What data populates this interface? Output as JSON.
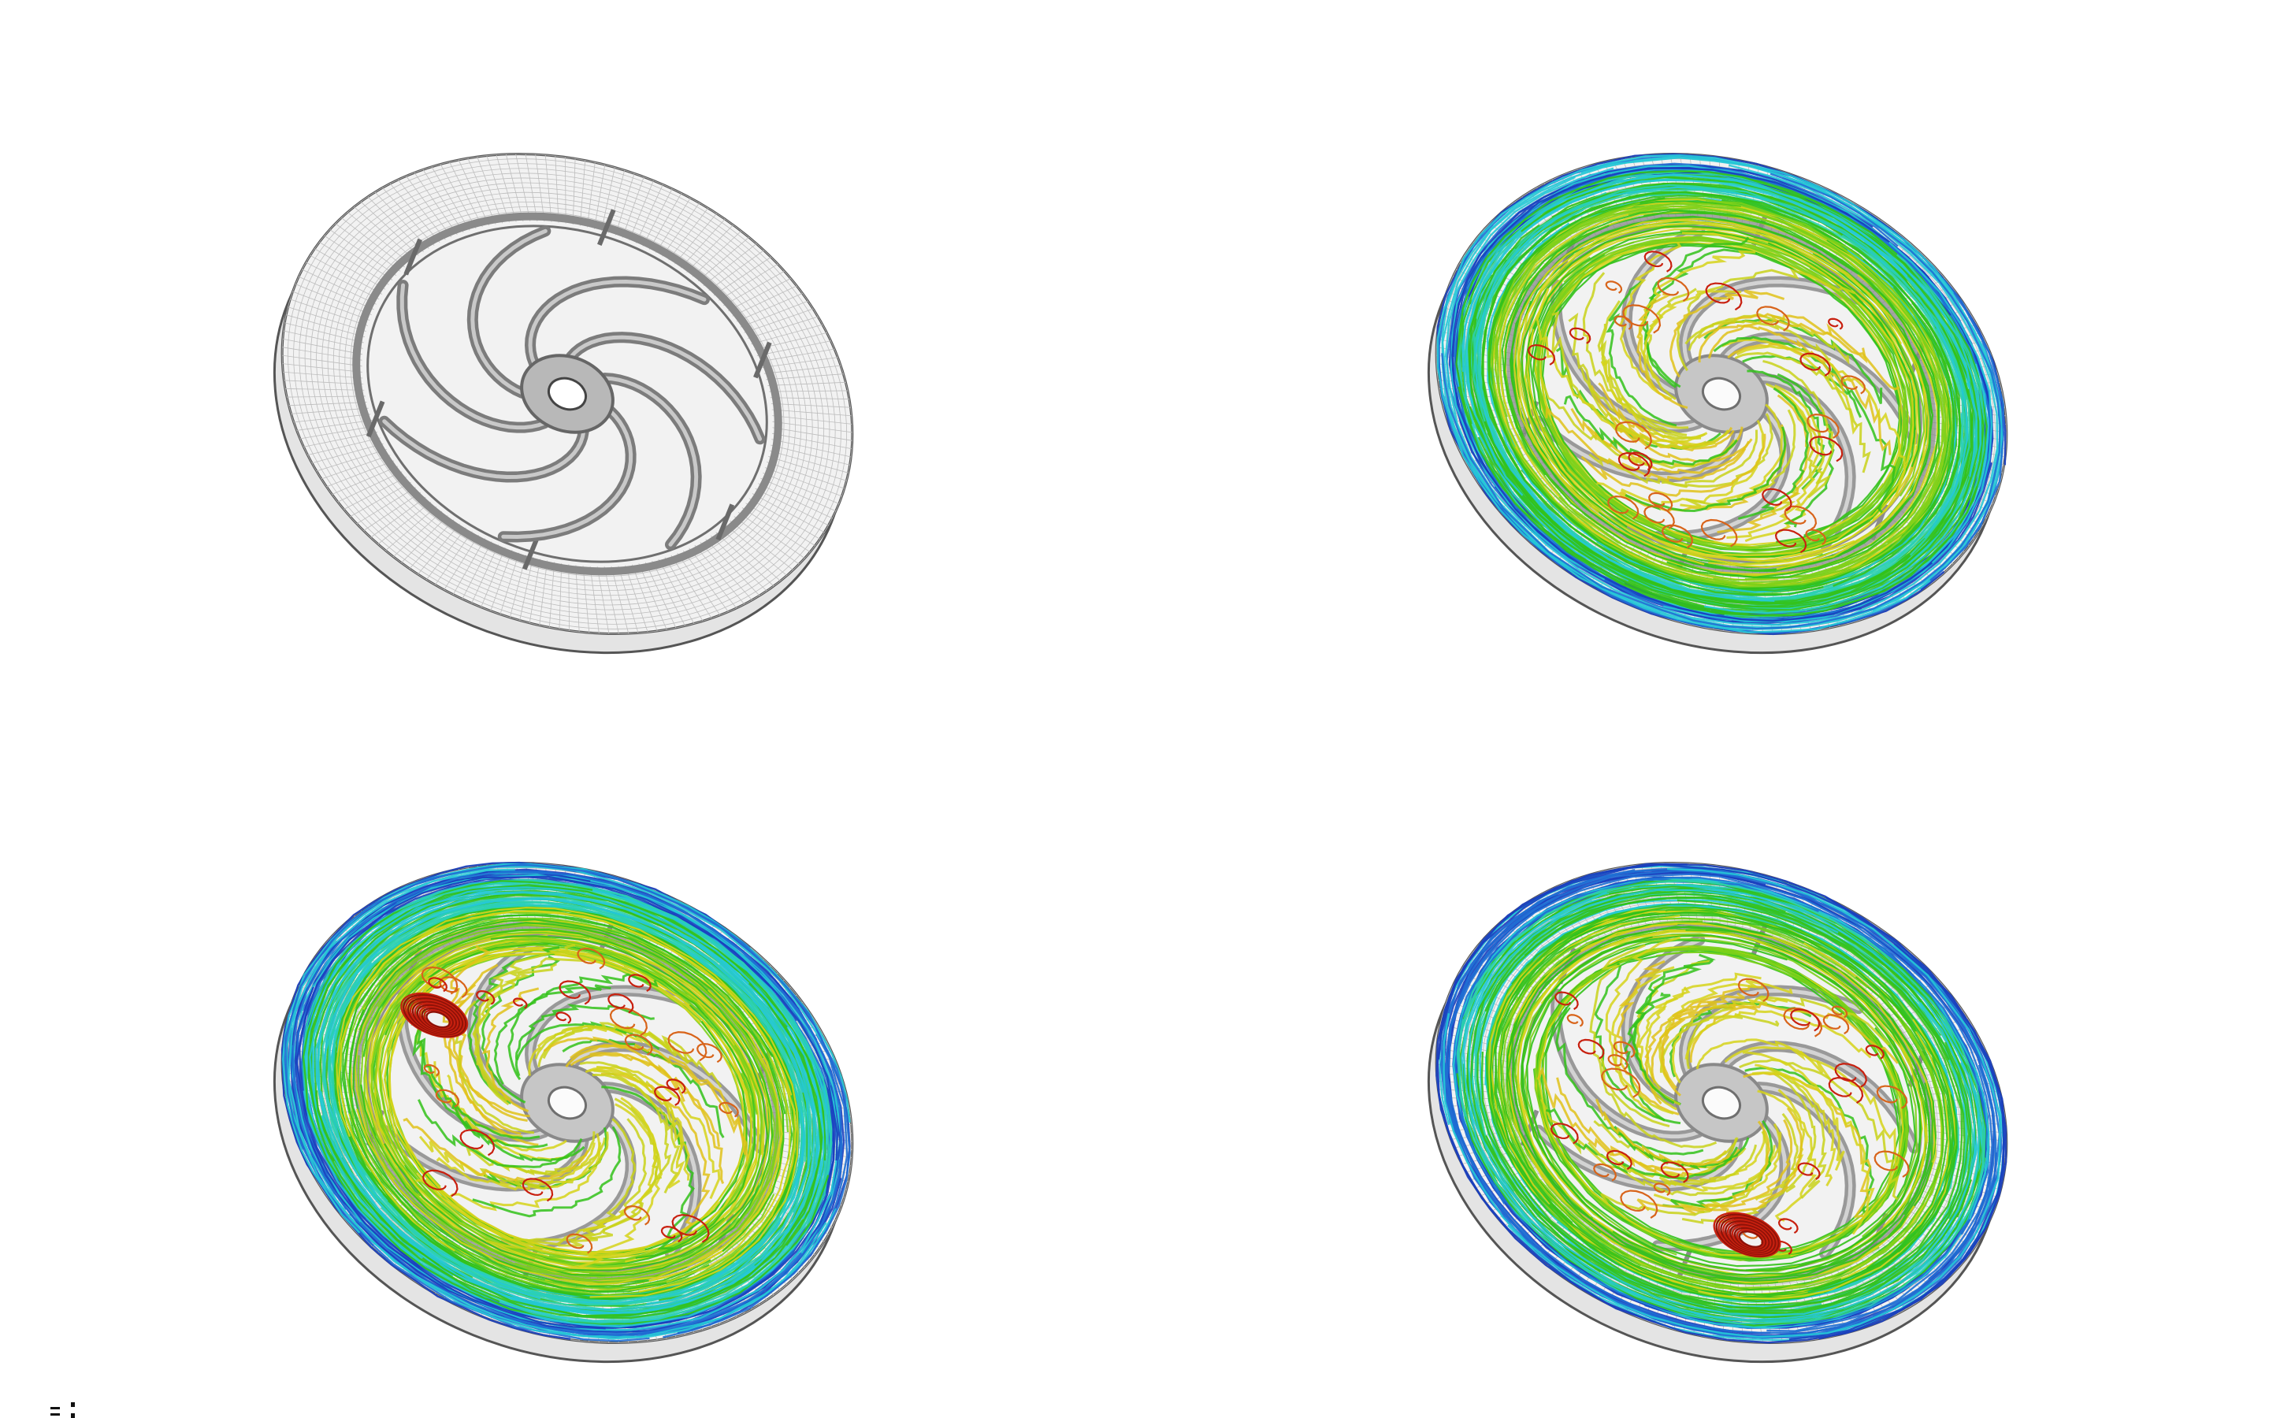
{
  "figure": {
    "panels": [
      {
        "id": "panel-top-left",
        "kind": "mesh",
        "description_name": "impeller-mesh"
      },
      {
        "id": "panel-top-right",
        "kind": "streamlines",
        "description_name": "impeller-streamlines-a",
        "vortex": false
      },
      {
        "id": "panel-bottom-left",
        "kind": "streamlines",
        "description_name": "impeller-streamlines-b",
        "vortex": true,
        "vortex_side": "left"
      },
      {
        "id": "panel-bottom-right",
        "kind": "streamlines",
        "description_name": "impeller-streamlines-c",
        "vortex": true,
        "vortex_side": "lower-right"
      }
    ],
    "colors": {
      "mesh": "#6f6f6f",
      "mesh_light": "#bdbdbd",
      "outer_blue": "#1a3fbf",
      "cyan": "#25c8d6",
      "green": "#33c21a",
      "yellow": "#d6d41a",
      "red": "#c8200f",
      "orange": "#d8641a"
    },
    "blade_count": 7
  }
}
